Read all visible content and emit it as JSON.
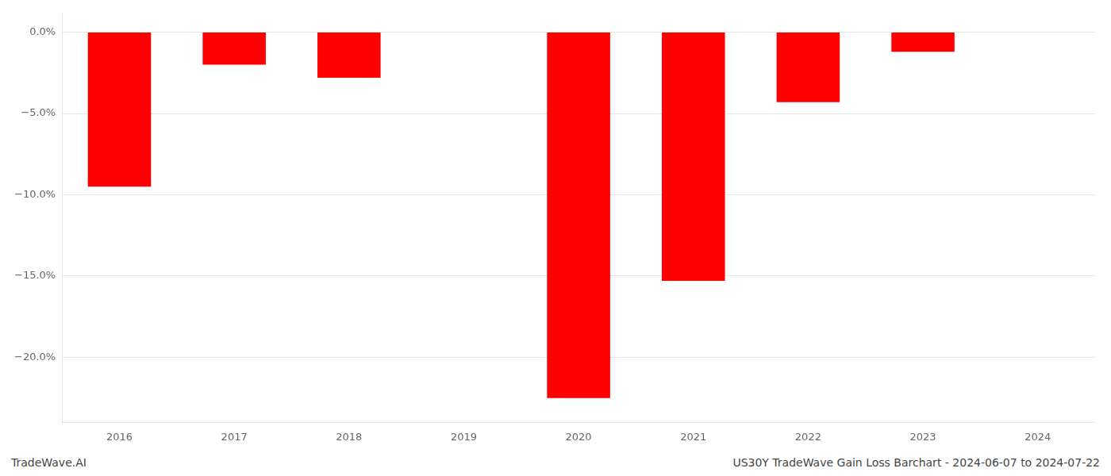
{
  "chart_data": {
    "type": "bar",
    "categories": [
      "2016",
      "2017",
      "2018",
      "2019",
      "2020",
      "2021",
      "2022",
      "2023",
      "2024"
    ],
    "values": [
      -9.5,
      -2.0,
      -2.8,
      0.0,
      -22.5,
      -15.3,
      -4.3,
      -1.2,
      0.0
    ],
    "color": "#ff0000",
    "ylim": [
      -24,
      1.2
    ],
    "yticks": [
      {
        "value": 0.0,
        "label": "0.0%"
      },
      {
        "value": -5.0,
        "label": "−5.0%"
      },
      {
        "value": -10.0,
        "label": "−10.0%"
      },
      {
        "value": -15.0,
        "label": "−15.0%"
      },
      {
        "value": -20.0,
        "label": "−20.0%"
      }
    ],
    "grid": true,
    "annotations": [
      "TradeWave.AI",
      "US30Y TradeWave Gain Loss Barchart - 2024-06-07 to 2024-07-22"
    ]
  }
}
